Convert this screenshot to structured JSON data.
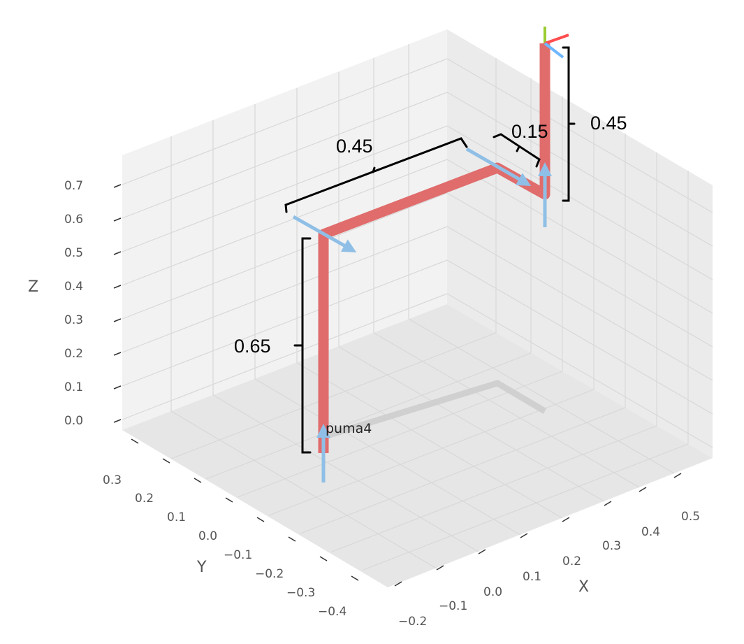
{
  "axes": {
    "z_label": "Z",
    "y_label": "Y",
    "x_label": "X",
    "z_ticks": [
      "0.0",
      "0.1",
      "0.2",
      "0.3",
      "0.4",
      "0.5",
      "0.6",
      "0.7"
    ],
    "y_ticks": [
      "0.3",
      "0.2",
      "0.1",
      "0.0",
      "−0.1",
      "−0.2",
      "−0.3",
      "−0.4"
    ],
    "x_ticks": [
      "−0.2",
      "−0.1",
      "0.0",
      "0.1",
      "0.2",
      "0.3",
      "0.4",
      "0.5"
    ]
  },
  "robot": {
    "name": "puma4",
    "link_color": "#e06c6c",
    "shadow_color": "#d0d0d0",
    "joint_axis_color": "#8fbfe6"
  },
  "dimensions": {
    "base_height": "0.65",
    "upper_arm": "0.45",
    "offset": "0.15",
    "forearm": "0.45"
  },
  "frame_colors": {
    "x": "#ff4d4d",
    "y": "#9acd32",
    "z": "#6fb7ff"
  }
}
